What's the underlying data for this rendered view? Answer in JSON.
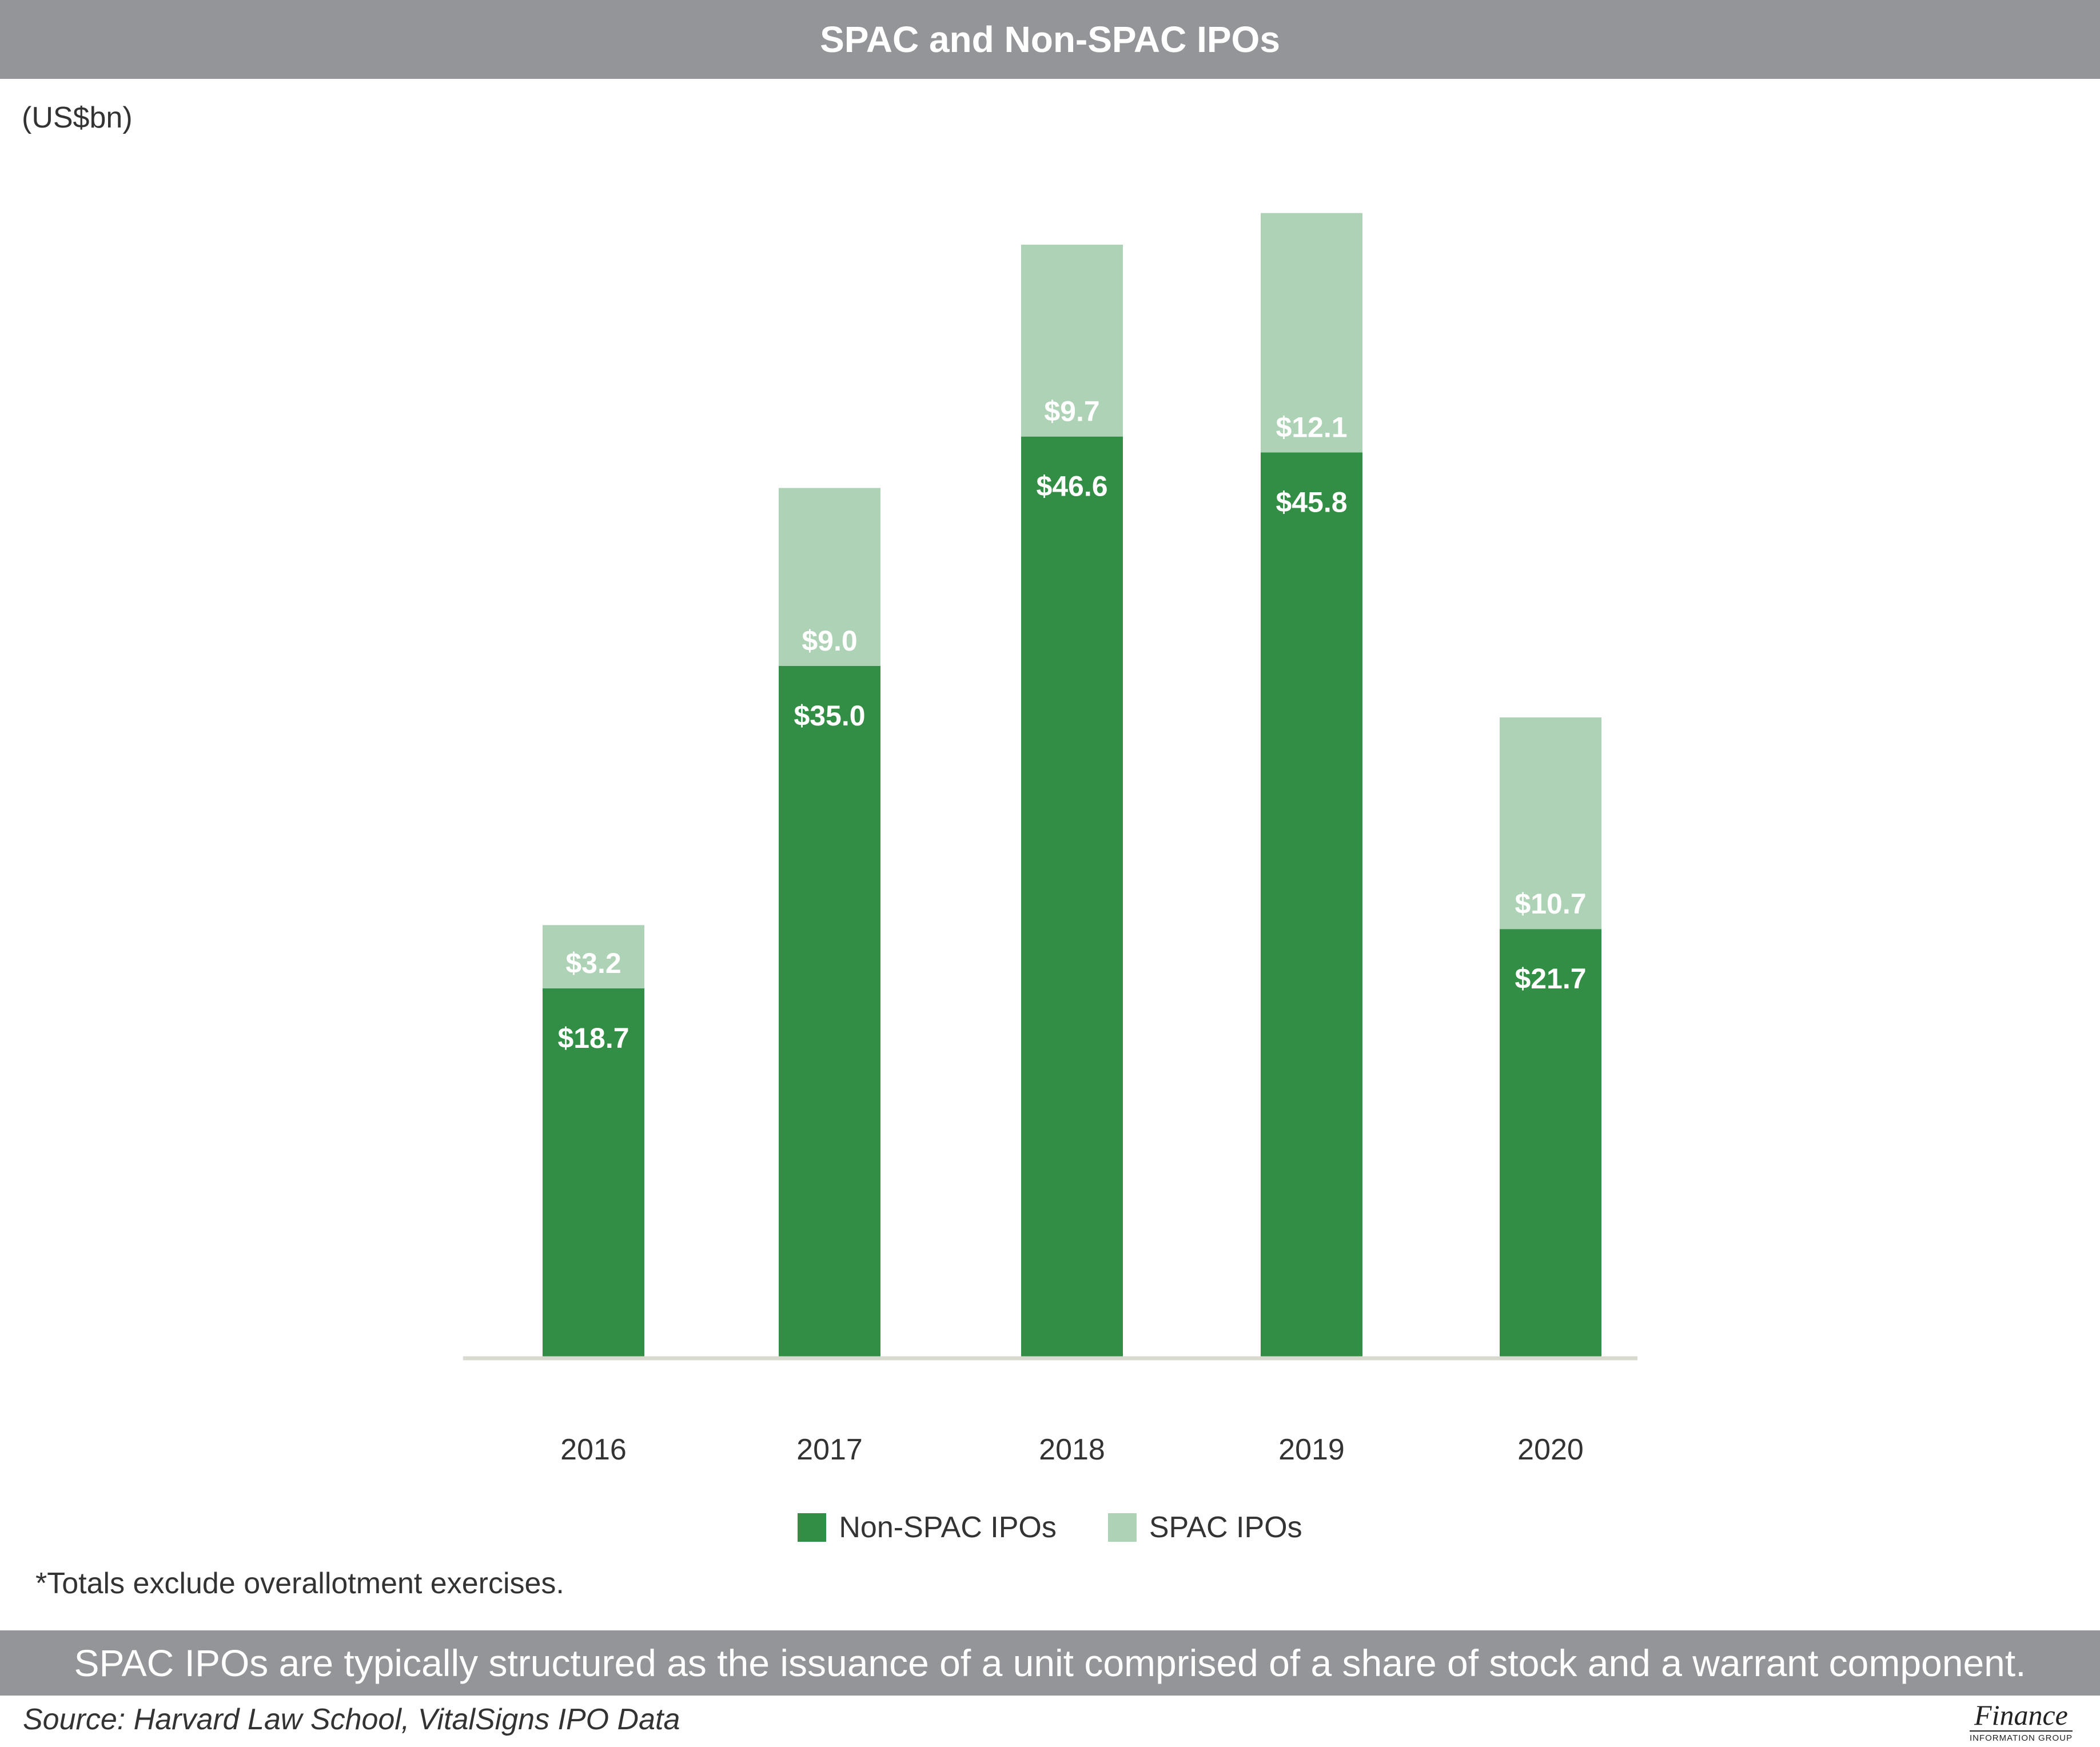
{
  "header": {
    "title": "SPAC and Non-SPAC IPOs"
  },
  "unit_label": "(US$bn)",
  "chart_data": {
    "type": "bar",
    "stacked": true,
    "title": "SPAC and Non-SPAC IPOs",
    "ylabel": "(US$bn)",
    "xlabel": "",
    "categories": [
      "2016",
      "2017",
      "2018",
      "2019",
      "2020"
    ],
    "series": [
      {
        "name": "Non-SPAC IPOs",
        "color": "#338e45",
        "values": [
          18.7,
          35.0,
          46.6,
          45.8,
          21.7
        ],
        "labels": [
          "$18.7",
          "$35.0",
          "$46.6",
          "$45.8",
          "$21.7"
        ]
      },
      {
        "name": "SPAC IPOs",
        "color": "#aed2b6",
        "values": [
          3.2,
          9.0,
          9.7,
          12.1,
          10.7
        ],
        "labels": [
          "$3.2",
          "$9.0",
          "$9.7",
          "$12.1",
          "$10.7"
        ]
      }
    ],
    "ylim": [
      0,
      60
    ],
    "grid": false,
    "legend_position": "bottom"
  },
  "legend": {
    "items": [
      "Non-SPAC IPOs",
      "SPAC IPOs"
    ]
  },
  "footnote": "*Totals exclude overallotment exercises.",
  "banner": {
    "text": "SPAC IPOs are typically structured as the issuance of a unit comprised of a share of stock and a warrant component."
  },
  "source": "Source: Harvard Law School, VitalSigns IPO Data",
  "logo": {
    "name": "Finance",
    "sub": "INFORMATION GROUP"
  },
  "colors": {
    "title_bg": "#939598",
    "non_spac": "#338e45",
    "spac": "#aed2b6",
    "axis": "#d9d9d0"
  }
}
